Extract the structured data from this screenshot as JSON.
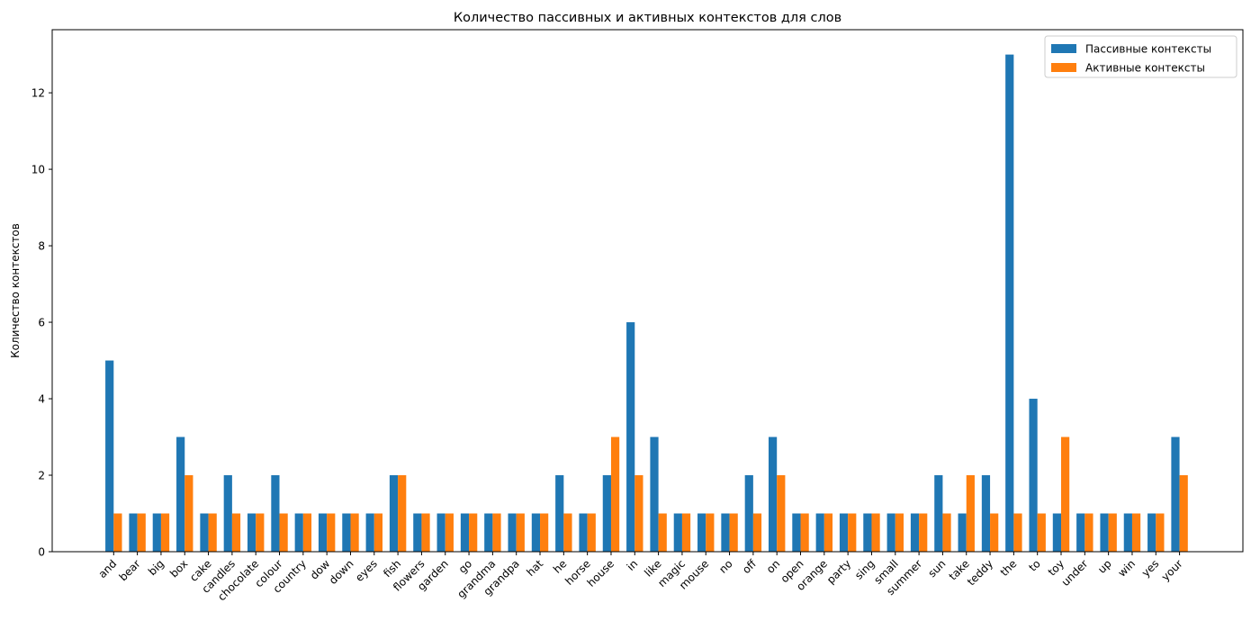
{
  "chart_data": {
    "type": "bar",
    "title": "Количество пассивных и активных контекстов для слов",
    "xlabel": "",
    "ylabel": "Количество контекстов",
    "ylim": [
      0,
      13.65
    ],
    "yticks": [
      0,
      2,
      4,
      6,
      8,
      10,
      12
    ],
    "grid": false,
    "legend_position": "top-right",
    "categories": [
      "and",
      "bear",
      "big",
      "box",
      "cake",
      "candles",
      "chocolate",
      "colour",
      "country",
      "dow",
      "down",
      "eyes",
      "fish",
      "flowers",
      "garden",
      "go",
      "grandma",
      "grandpa",
      "hat",
      "he",
      "horse",
      "house",
      "in",
      "like",
      "magic",
      "mouse",
      "no",
      "off",
      "on",
      "open",
      "orange",
      "party",
      "sing",
      "small",
      "summer",
      "sun",
      "take",
      "teddy",
      "the",
      "to",
      "toy",
      "under",
      "up",
      "win",
      "yes",
      "your"
    ],
    "series": [
      {
        "name": "Пассивные контексты",
        "color": "#1f77b4",
        "values": [
          5,
          1,
          1,
          3,
          1,
          2,
          1,
          2,
          1,
          1,
          1,
          1,
          2,
          1,
          1,
          1,
          1,
          1,
          1,
          2,
          1,
          2,
          6,
          3,
          1,
          1,
          1,
          2,
          3,
          1,
          1,
          1,
          1,
          1,
          1,
          2,
          1,
          2,
          13,
          4,
          1,
          1,
          1,
          1,
          1,
          3
        ]
      },
      {
        "name": "Активные контексты",
        "color": "#ff7f0e",
        "values": [
          1,
          1,
          1,
          2,
          1,
          1,
          1,
          1,
          1,
          1,
          1,
          1,
          2,
          1,
          1,
          1,
          1,
          1,
          1,
          1,
          1,
          3,
          2,
          1,
          1,
          1,
          1,
          1,
          2,
          1,
          1,
          1,
          1,
          1,
          1,
          1,
          2,
          1,
          1,
          1,
          3,
          1,
          1,
          1,
          1,
          2
        ]
      }
    ]
  }
}
